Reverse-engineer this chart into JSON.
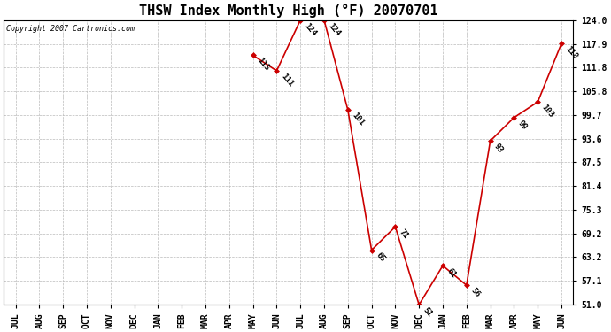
{
  "title": "THSW Index Monthly High (°F) 20070701",
  "copyright": "Copyright 2007 Cartronics.com",
  "x_labels": [
    "JUL",
    "AUG",
    "SEP",
    "OCT",
    "NOV",
    "DEC",
    "JAN",
    "FEB",
    "MAR",
    "APR",
    "MAY",
    "JUN",
    "JUL",
    "AUG",
    "SEP",
    "OCT",
    "NOV",
    "DEC",
    "JAN",
    "FEB",
    "MAR",
    "APR",
    "MAY",
    "JUN"
  ],
  "y_values": [
    null,
    null,
    null,
    null,
    null,
    null,
    null,
    null,
    null,
    null,
    115,
    111,
    124,
    124,
    101,
    65,
    71,
    51,
    61,
    56,
    93,
    99,
    103,
    118
  ],
  "data_labels": [
    null,
    null,
    null,
    null,
    null,
    null,
    null,
    null,
    null,
    null,
    "115",
    "111",
    "124",
    "124",
    "101",
    "65",
    "71",
    "51",
    "61",
    "56",
    "93",
    "99",
    "103",
    "118"
  ],
  "line_color": "#cc0000",
  "marker_color": "#cc0000",
  "bg_color": "#ffffff",
  "grid_color": "#bbbbbb",
  "ylim_min": 51.0,
  "ylim_max": 124.0,
  "yticks": [
    51.0,
    57.1,
    63.2,
    69.2,
    75.3,
    81.4,
    87.5,
    93.6,
    99.7,
    105.8,
    111.8,
    117.9,
    124.0
  ],
  "title_fontsize": 11,
  "label_fontsize": 6.5,
  "tick_fontsize": 7,
  "copyright_fontsize": 6
}
